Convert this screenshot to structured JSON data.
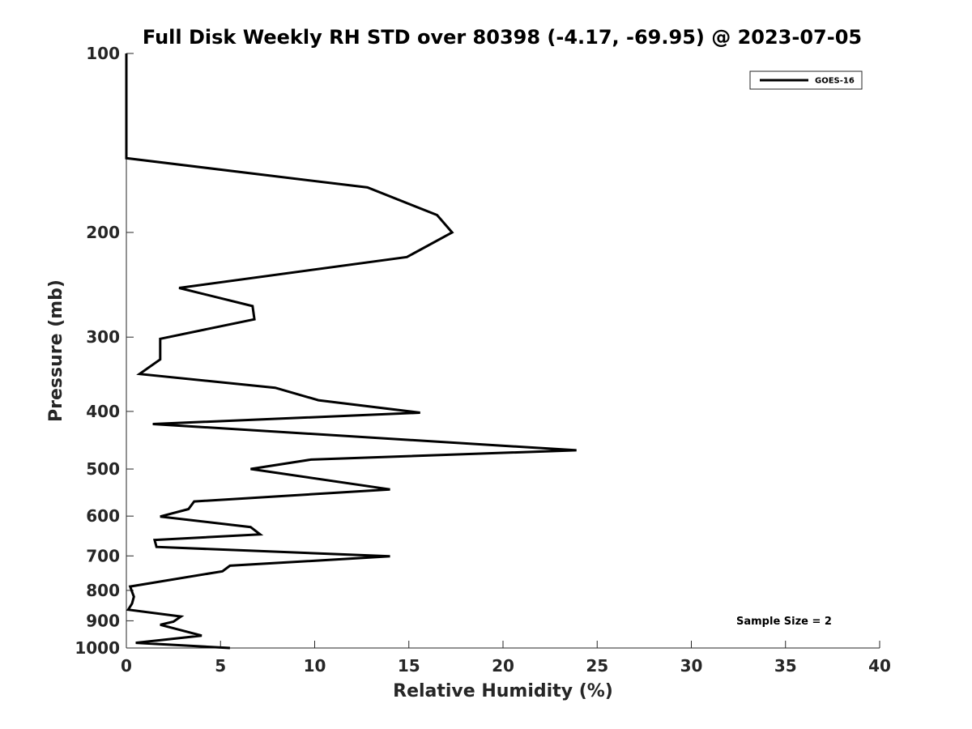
{
  "chart_data": {
    "type": "line",
    "title": "Full Disk Weekly RH STD over 80398 (-4.17, -69.95) @ 2023-07-05",
    "xlabel": "Relative Humidity (%)",
    "ylabel": "Pressure (mb)",
    "xlim": [
      0,
      40
    ],
    "ylim": [
      100,
      1000
    ],
    "yscale": "log",
    "y_reversed": true,
    "grid": false,
    "xticks": [
      0,
      5,
      10,
      15,
      20,
      25,
      30,
      35,
      40
    ],
    "xtick_labels": [
      "0",
      "5",
      "10",
      "15",
      "20",
      "25",
      "30",
      "35",
      "40"
    ],
    "yticks": [
      100,
      200,
      300,
      400,
      500,
      600,
      700,
      800,
      900,
      1000
    ],
    "ytick_labels": [
      "100",
      "200",
      "300",
      "400",
      "500",
      "600",
      "700",
      "800",
      "900",
      "1000"
    ],
    "legend": {
      "position": "top-right",
      "entries": [
        "GOES-16"
      ]
    },
    "annotation": "Sample Size = 2",
    "series": [
      {
        "name": "GOES-16",
        "color": "#000000",
        "points": [
          [
            0,
            100
          ],
          [
            0,
            150
          ],
          [
            12.8,
            168
          ],
          [
            16.5,
            187
          ],
          [
            17.3,
            200
          ],
          [
            14.9,
            220
          ],
          [
            2.8,
            248
          ],
          [
            6.7,
            266
          ],
          [
            6.8,
            280
          ],
          [
            1.8,
            302
          ],
          [
            1.8,
            327
          ],
          [
            0.7,
            346
          ],
          [
            7.9,
            365
          ],
          [
            10.2,
            383
          ],
          [
            15.6,
            402
          ],
          [
            1.4,
            420
          ],
          [
            23.9,
            465
          ],
          [
            9.8,
            482
          ],
          [
            6.6,
            500
          ],
          [
            14.0,
            541
          ],
          [
            3.6,
            567
          ],
          [
            3.3,
            584
          ],
          [
            1.8,
            601
          ],
          [
            6.6,
            626
          ],
          [
            7.1,
            644
          ],
          [
            1.5,
            658
          ],
          [
            1.6,
            676
          ],
          [
            14.0,
            701
          ],
          [
            5.5,
            727
          ],
          [
            5.1,
            743
          ],
          [
            0.2,
            788
          ],
          [
            0.3,
            804
          ],
          [
            0.4,
            820
          ],
          [
            0.3,
            842
          ],
          [
            0.1,
            862
          ],
          [
            2.9,
            885
          ],
          [
            2.5,
            903
          ],
          [
            1.8,
            914
          ],
          [
            4.0,
            953
          ],
          [
            0.5,
            980
          ],
          [
            5.5,
            1000
          ]
        ]
      }
    ]
  }
}
